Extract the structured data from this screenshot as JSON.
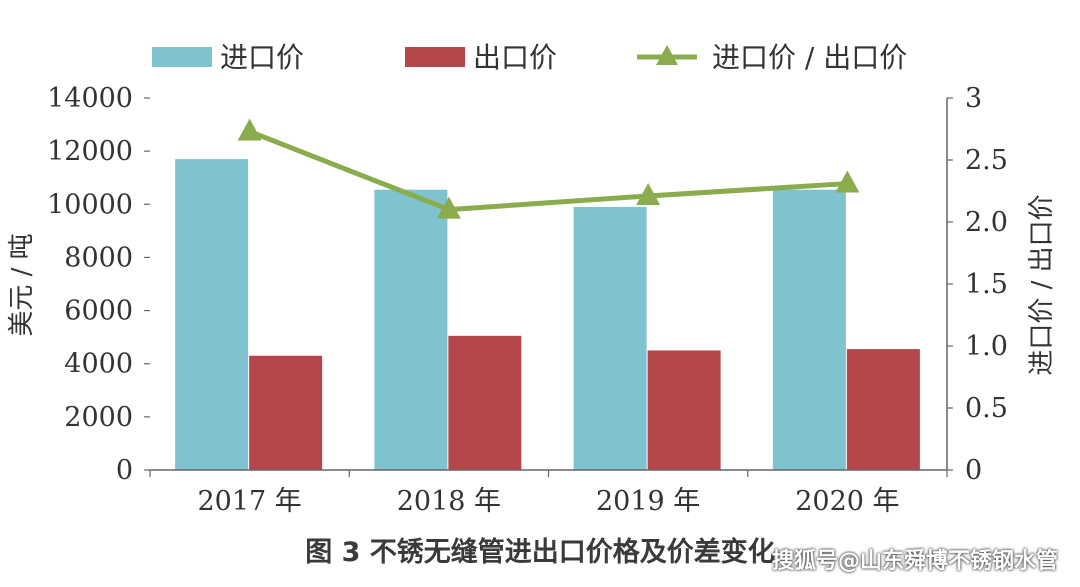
{
  "chart_data": {
    "type": "bar",
    "categories": [
      "2017 年",
      "2018 年",
      "2019 年",
      "2020 年"
    ],
    "series": [
      {
        "name": "进口价",
        "kind": "bar",
        "axis": "left",
        "color": "#7fc3d0",
        "values": [
          11700,
          10550,
          9900,
          10550
        ]
      },
      {
        "name": "出口价",
        "kind": "bar",
        "axis": "left",
        "color": "#b5464c",
        "values": [
          4300,
          5050,
          4500,
          4550
        ]
      },
      {
        "name": "进口价 / 出口价",
        "kind": "line",
        "axis": "right",
        "color": "#8aac4c",
        "marker": "triangle",
        "values": [
          2.73,
          2.1,
          2.21,
          2.31
        ]
      }
    ],
    "ylabel": "美元 / 吨",
    "y2label": "进口价 / 出口价",
    "ylim": [
      0,
      14000
    ],
    "y2lim": [
      0,
      3
    ],
    "yticks": [
      "0",
      "2000",
      "4000",
      "6000",
      "8000",
      "10000",
      "12000",
      "14000"
    ],
    "y2ticks": [
      "0",
      "0.5",
      "1.0",
      "1.5",
      "2.0",
      "2.5",
      "3"
    ],
    "legend_position": "top",
    "grid": false
  },
  "caption": "图 3  不锈无缝管进出口价格及价差变化",
  "watermark": "搜狐号@山东舜博不锈钢水管"
}
